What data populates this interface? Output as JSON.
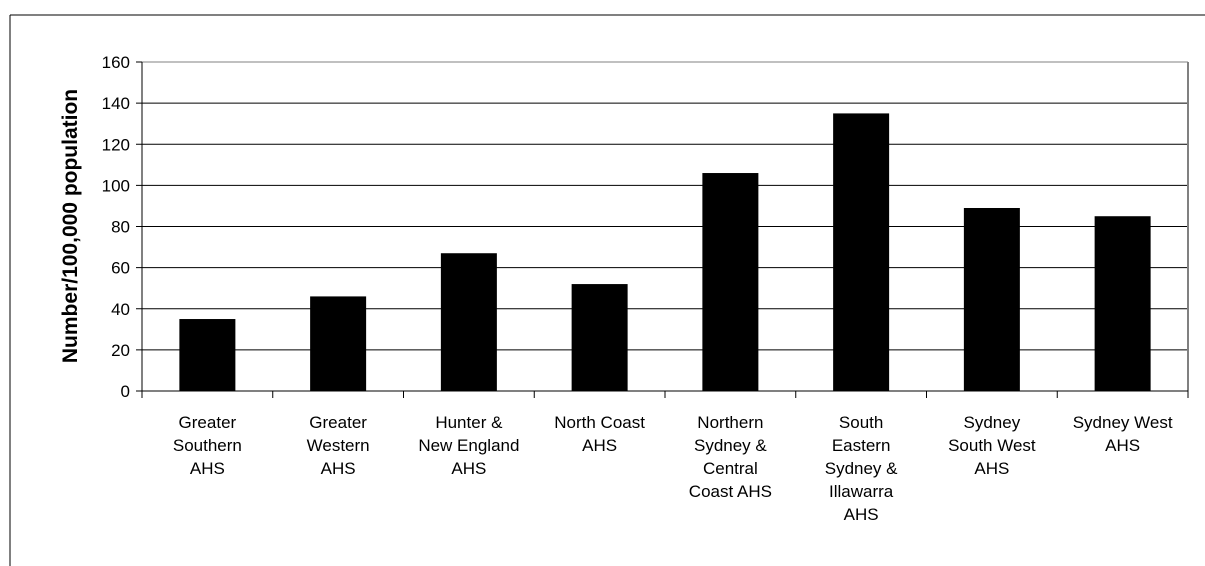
{
  "chart_data": {
    "type": "bar",
    "title": "",
    "xlabel": "",
    "ylabel": "Number/100,000 population",
    "ylim": [
      0,
      160
    ],
    "yticks": [
      0,
      20,
      40,
      60,
      80,
      100,
      120,
      140,
      160
    ],
    "grid": true,
    "legend": "none",
    "bar_color": "#000000",
    "categories": [
      "Greater Southern AHS",
      "Greater Western AHS",
      "Hunter & New England AHS",
      "North Coast AHS",
      "Northern Sydney & Central Coast AHS",
      "South Eastern Sydney & Illawarra AHS",
      "Sydney South West AHS",
      "Sydney West AHS"
    ],
    "category_lines": [
      [
        "Greater",
        "Southern",
        "AHS"
      ],
      [
        "Greater",
        "Western",
        "AHS"
      ],
      [
        "Hunter &",
        "New England",
        "AHS"
      ],
      [
        "North Coast",
        "AHS"
      ],
      [
        "Northern",
        "Sydney &",
        "Central",
        "Coast AHS"
      ],
      [
        "South",
        "Eastern",
        "Sydney &",
        "Illawarra",
        "AHS"
      ],
      [
        "Sydney",
        "South West",
        "AHS"
      ],
      [
        "Sydney West",
        "AHS"
      ]
    ],
    "values": [
      35,
      46,
      67,
      52,
      106,
      135,
      89,
      85
    ]
  }
}
